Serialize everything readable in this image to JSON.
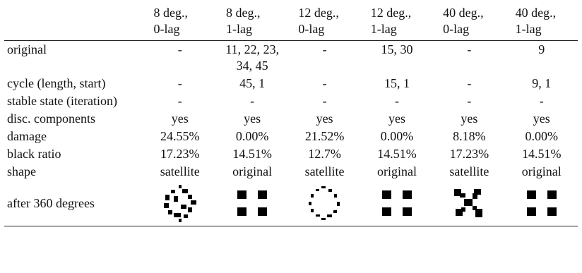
{
  "table": {
    "header": [
      [
        "8 deg.,",
        "0-lag"
      ],
      [
        "8 deg.,",
        "1-lag"
      ],
      [
        "12 deg.,",
        "0-lag"
      ],
      [
        "12 deg.,",
        "1-lag"
      ],
      [
        "40 deg.,",
        "0-lag"
      ],
      [
        "40 deg.,",
        "1-lag"
      ]
    ],
    "rows": [
      [
        "original",
        "-",
        "11, 22, 23, 34, 45",
        "-",
        "15, 30",
        "-",
        "9"
      ],
      [
        "cycle (length, start)",
        "-",
        "45, 1",
        "-",
        "15, 1",
        "-",
        "9, 1"
      ],
      [
        "stable state (iteration)",
        "-",
        "-",
        "-",
        "-",
        "-",
        "-"
      ],
      [
        "disc. components",
        "yes",
        "yes",
        "yes",
        "yes",
        "yes",
        "yes"
      ],
      [
        "damage",
        "24.55%",
        "0.00%",
        "21.52%",
        "0.00%",
        "8.18%",
        "0.00%"
      ],
      [
        "black ratio",
        "17.23%",
        "14.51%",
        "12.7%",
        "14.51%",
        "17.23%",
        "14.51%"
      ],
      [
        "shape",
        "satellite",
        "original",
        "satellite",
        "original",
        "satellite",
        "original"
      ]
    ],
    "image_row_label": "after 360 degrees"
  }
}
